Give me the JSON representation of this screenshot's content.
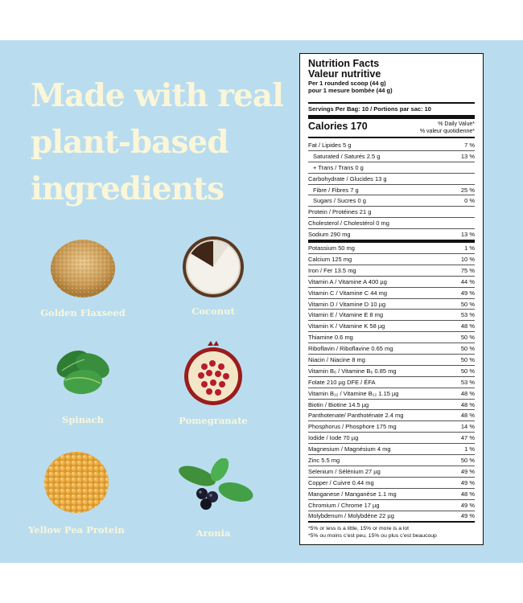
{
  "headline": [
    "Made with real",
    "plant-based",
    "ingredients"
  ],
  "ingredients": [
    {
      "label": "Golden Flaxseed",
      "icon": "flaxseed-icon"
    },
    {
      "label": "Coconut",
      "icon": "coconut-icon"
    },
    {
      "label": "Spinach",
      "icon": "spinach-icon"
    },
    {
      "label": "Pomegranate",
      "icon": "pomegranate-icon"
    },
    {
      "label": "Yellow Pea Protein",
      "icon": "pea-protein-icon"
    },
    {
      "label": "Aronia",
      "icon": "aronia-icon"
    }
  ],
  "nutrition": {
    "title_en": "Nutrition Facts",
    "title_fr": "Valeur nutritive",
    "per_en": "Per 1 rounded scoop (44 g)",
    "per_fr": "pour 1 mesure bombée (44 g)",
    "servings": "Servings Per Bag: 10 / Portions par sac: 10",
    "calories": "Calories 170",
    "dv_en": "% Daily Value*",
    "dv_fr": "% valeur quotidienne*",
    "rows": [
      {
        "name": "Fat / Lipides  5 g",
        "pct": "7 %"
      },
      {
        "name": "Saturated / Saturés  2.5 g",
        "pct": "13 %"
      },
      {
        "name": "+ Trans / Trans  0 g",
        "pct": ""
      },
      {
        "name": "Carbohydrate / Glucides  13 g",
        "pct": ""
      },
      {
        "name": "Fibre / Fibres  7 g",
        "pct": "25 %"
      },
      {
        "name": "Sugars / Sucres  0 g",
        "pct": "0 %"
      },
      {
        "name": "Protein / Protéines  21 g",
        "pct": ""
      },
      {
        "name": "Cholesterol / Cholestérol  0 mg",
        "pct": ""
      },
      {
        "name": "Sodium  290 mg",
        "pct": "13 %"
      },
      {
        "name": "Potassium  50 mg",
        "pct": "1 %"
      },
      {
        "name": "Calcium  125 mg",
        "pct": "10 %"
      },
      {
        "name": "Iron / Fer  13.5 mg",
        "pct": "75 %"
      },
      {
        "name": "Vitamin A / Vitamine A  400 µg",
        "pct": "44 %"
      },
      {
        "name": "Vitamin C / Vitamine C  44 mg",
        "pct": "49 %"
      },
      {
        "name": "Vitamin D / Vitamine D  10 µg",
        "pct": "50 %"
      },
      {
        "name": "Vitamin E / Vitamine E  8 mg",
        "pct": "53 %"
      },
      {
        "name": "Vitamin K / Vitamine K 58 µg",
        "pct": "48 %"
      },
      {
        "name": "Thiamine  0.6 mg",
        "pct": "50 %"
      },
      {
        "name": "Riboflavin / Riboflavine  0.65 mg",
        "pct": "50 %"
      },
      {
        "name": "Niacin / Niacine 8 mg",
        "pct": "50 %"
      },
      {
        "name": "Vitamin B₆ / Vitamine B₆  0.85 mg",
        "pct": "50 %"
      },
      {
        "name": "Folate 210 µg DFE / ÉFA",
        "pct": "53 %"
      },
      {
        "name": "Vitamin B₁₂ / Vitamine B₁₂  1.15 µg",
        "pct": "48 %"
      },
      {
        "name": "Biotin / Biotine  14.5 µg",
        "pct": "48 %"
      },
      {
        "name": "Panthotenate/ Panthoténate  2.4 mg",
        "pct": "48 %"
      },
      {
        "name": "Phosphorus / Phosphore  175 mg",
        "pct": "14 %"
      },
      {
        "name": "Iodide / Iode  70 µg",
        "pct": "47 %"
      },
      {
        "name": "Magnesium / Magnésium  4 mg",
        "pct": "1 %"
      },
      {
        "name": "Zinc 5.5 mg",
        "pct": "50 %"
      },
      {
        "name": "Selenium / Sélénium  27 µg",
        "pct": "49 %"
      },
      {
        "name": "Copper / Cuivre  0.44 mg",
        "pct": "49 %"
      },
      {
        "name": "Manganese / Manganèse  1.1 mg",
        "pct": "48 %"
      },
      {
        "name": "Chromium / Chrome  17 µg",
        "pct": "49 %"
      },
      {
        "name": "Molybdenum / Molybdène  22 µg",
        "pct": "49 %"
      }
    ],
    "foot_en": "*5% or less is a little, 15% or more is a lot",
    "foot_fr": "*5% ou moins c’est peu, 15% ou plus c’est beaucoup"
  },
  "colors": {
    "panel": "#b9ddef",
    "headline": "#fbf6d9"
  }
}
